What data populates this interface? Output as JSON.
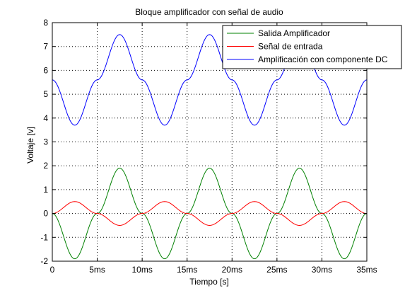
{
  "chart_data": {
    "type": "line",
    "title": "Bloque amplificador con señal de audio",
    "xlabel": "Tiempo [s]",
    "ylabel": "Voltaje [v]",
    "xlim": [
      0,
      35
    ],
    "ylim": [
      -2,
      8
    ],
    "x_ticks": [
      0,
      5,
      10,
      15,
      20,
      25,
      30,
      35
    ],
    "x_tick_labels": [
      "0",
      "5ms",
      "10ms",
      "15ms",
      "20ms",
      "25ms",
      "30ms",
      "35ms"
    ],
    "y_ticks": [
      -2,
      -1,
      0,
      1,
      2,
      3,
      4,
      5,
      6,
      7,
      8
    ],
    "y_tick_labels": [
      "-2",
      "-1",
      "0",
      "1",
      "2",
      "3",
      "4",
      "5",
      "6",
      "7",
      "8"
    ],
    "grid": true,
    "legend_position": "top-right",
    "x_unit": "ms",
    "series": [
      {
        "name": "Salida Amplificador",
        "color": "#008000",
        "x": [
          0,
          2.5,
          5,
          7.5,
          10,
          12.5,
          15,
          17.5,
          20,
          22.5,
          25,
          27.5,
          30,
          32.5,
          35
        ],
        "y": [
          0,
          -1.9,
          0,
          1.9,
          0,
          -1.9,
          0,
          1.9,
          0,
          -1.9,
          0,
          1.9,
          0,
          -1.9,
          0
        ]
      },
      {
        "name": "Señal de entrada",
        "color": "#ff0000",
        "x": [
          0,
          2.5,
          5,
          7.5,
          10,
          12.5,
          15,
          17.5,
          20,
          22.5,
          25,
          27.5,
          30,
          32.5,
          35
        ],
        "y": [
          0,
          0.5,
          0,
          -0.5,
          0,
          0.5,
          0,
          -0.5,
          0,
          0.5,
          0,
          -0.5,
          0,
          0.5,
          0
        ]
      },
      {
        "name": "Amplificación con componente DC",
        "color": "#0000ff",
        "x": [
          0,
          2.5,
          5,
          7.5,
          10,
          12.5,
          15,
          17.5,
          20,
          22.5,
          25,
          27.5,
          30,
          32.5,
          35
        ],
        "y": [
          5.6,
          3.7,
          5.6,
          7.5,
          5.6,
          3.7,
          5.6,
          7.5,
          5.6,
          3.7,
          5.6,
          7.5,
          5.6,
          3.7,
          5.6
        ]
      }
    ]
  }
}
